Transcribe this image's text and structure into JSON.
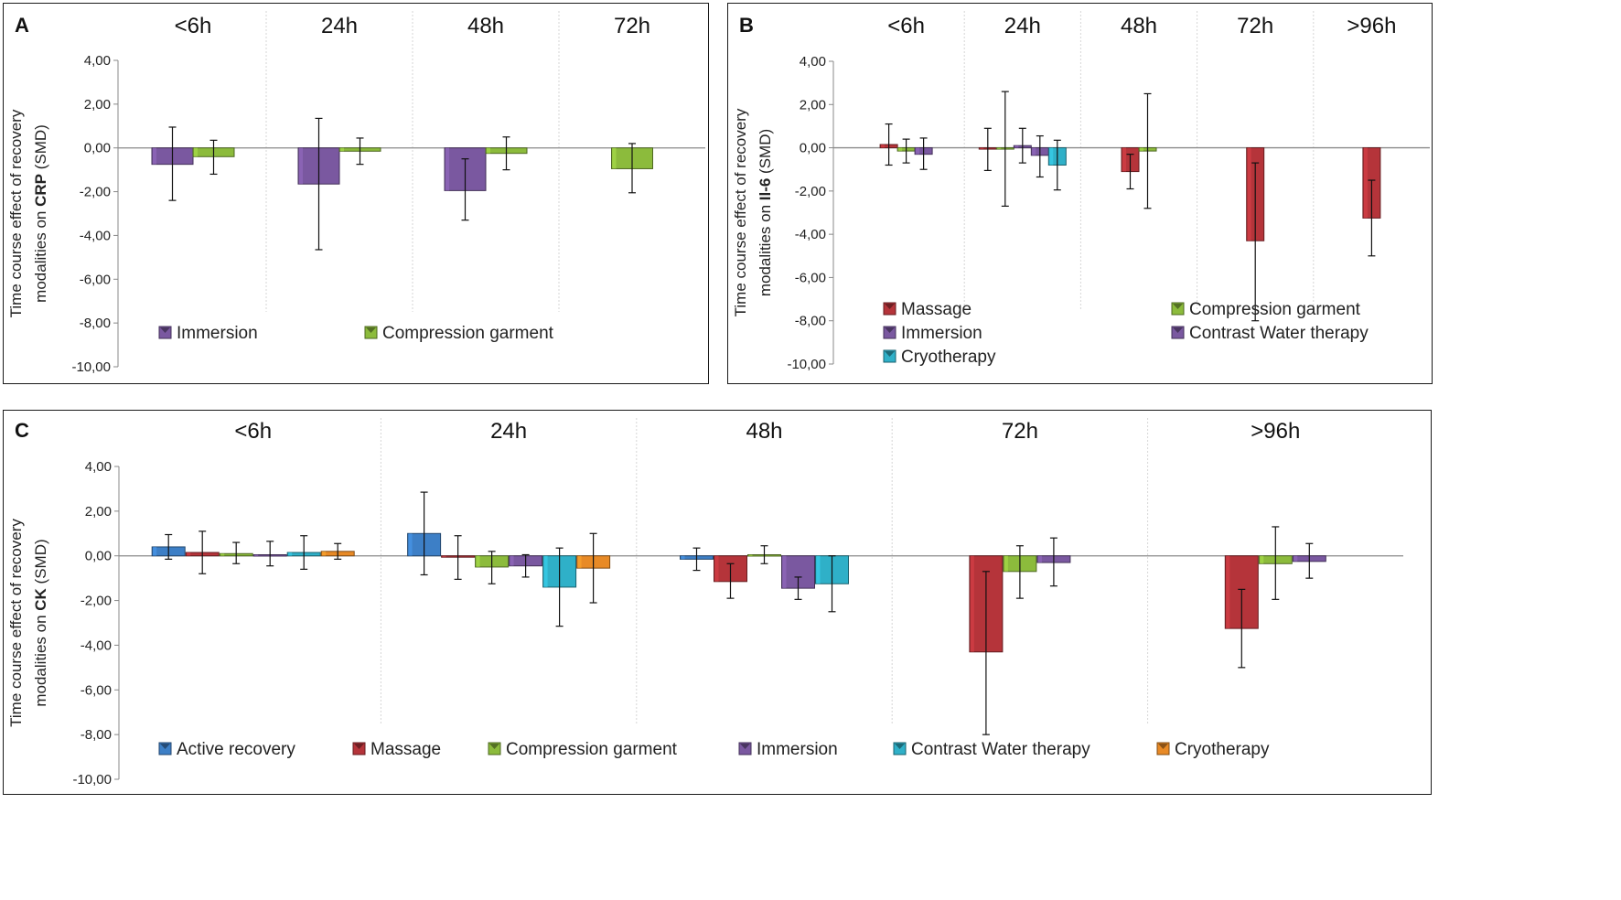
{
  "chart_data": [
    {
      "type": "bar",
      "panel_label": "A",
      "ylabel": [
        "Time course effect of recovery",
        "modalities on",
        "CRP",
        "(SMD)"
      ],
      "ylim": [
        -10,
        4
      ],
      "y_ticks": [
        "4,00",
        "2,00",
        "0,00",
        "-2,00",
        "-4,00",
        "-6,00",
        "-8,00",
        "-10,00"
      ],
      "categories": [
        "<6h",
        "24h",
        "48h",
        "72h"
      ],
      "series": [
        {
          "name": "Immersion",
          "color": "#7a58a0",
          "values": [
            -0.75,
            -1.65,
            -1.95,
            null
          ],
          "ci_low": [
            -2.4,
            -4.65,
            -3.3,
            null
          ],
          "ci_high": [
            0.95,
            1.35,
            -0.5,
            null
          ]
        },
        {
          "name": "Compression garment",
          "color": "#8cbb3c",
          "values": [
            -0.4,
            -0.15,
            -0.25,
            -0.95
          ],
          "ci_low": [
            -1.2,
            -0.75,
            -1.0,
            -2.05
          ],
          "ci_high": [
            0.35,
            0.45,
            0.5,
            0.2
          ]
        }
      ],
      "legend": [
        "Immersion",
        "Compression garment"
      ]
    },
    {
      "type": "bar",
      "panel_label": "B",
      "ylabel": [
        "Time course effect of recovery",
        "modalities on",
        "Il-6",
        "(SMD)"
      ],
      "ylim": [
        -10,
        4
      ],
      "y_ticks": [
        "4,00",
        "2,00",
        "0,00",
        "-2,00",
        "-4,00",
        "-6,00",
        "-8,00",
        "-10,00"
      ],
      "categories": [
        "<6h",
        "24h",
        "48h",
        "72h",
        ">96h"
      ],
      "series": [
        {
          "name": "Massage",
          "color": "#b5343a",
          "values": [
            0.15,
            -0.05,
            -1.1,
            -4.3,
            -3.25
          ],
          "ci_low": [
            -0.8,
            -1.05,
            -1.9,
            -8.0,
            -5.0
          ],
          "ci_high": [
            1.1,
            0.9,
            -0.3,
            -0.7,
            -1.5
          ]
        },
        {
          "name": "Compression garment",
          "color": "#8cbb3c",
          "values": [
            -0.15,
            -0.05,
            -0.15,
            null,
            null
          ],
          "ci_low": [
            -0.7,
            -2.7,
            -2.8,
            null,
            null
          ],
          "ci_high": [
            0.4,
            2.6,
            2.5,
            null,
            null
          ]
        },
        {
          "name": "Immersion",
          "color": "#7a58a0",
          "values": [
            -0.3,
            0.1,
            null,
            null,
            null
          ],
          "ci_low": [
            -1.0,
            -0.7,
            null,
            null,
            null
          ],
          "ci_high": [
            0.45,
            0.9,
            null,
            null,
            null
          ]
        },
        {
          "name": "Contrast Water therapy",
          "color": "#7a58a0",
          "values": [
            null,
            -0.35,
            null,
            null,
            null
          ],
          "ci_low": [
            null,
            -1.35,
            null,
            null,
            null
          ],
          "ci_high": [
            null,
            0.55,
            null,
            null,
            null
          ]
        },
        {
          "name": "Cryotherapy",
          "color": "#2fb0c8",
          "values": [
            null,
            -0.8,
            null,
            null,
            null
          ],
          "ci_low": [
            null,
            -1.95,
            null,
            null,
            null
          ],
          "ci_high": [
            null,
            0.35,
            null,
            null,
            null
          ]
        }
      ],
      "legend": [
        "Massage",
        "Compression garment",
        "Immersion",
        "Contrast Water therapy",
        "Cryotherapy"
      ]
    },
    {
      "type": "bar",
      "panel_label": "C",
      "ylabel": [
        "Time course effect of recovery",
        "modalities on",
        "CK",
        "(SMD)"
      ],
      "ylim": [
        -10,
        4
      ],
      "y_ticks": [
        "4,00",
        "2,00",
        "0,00",
        "-2,00",
        "-4,00",
        "-6,00",
        "-8,00",
        "-10,00"
      ],
      "categories": [
        "<6h",
        "24h",
        "48h",
        "72h",
        ">96h"
      ],
      "series": [
        {
          "name": "Active recovery",
          "color": "#3d7fc6",
          "values": [
            0.4,
            1.0,
            -0.15,
            null,
            null
          ],
          "ci_low": [
            -0.15,
            -0.85,
            -0.65,
            null,
            null
          ],
          "ci_high": [
            0.95,
            2.85,
            0.35,
            null,
            null
          ]
        },
        {
          "name": "Massage",
          "color": "#b5343a",
          "values": [
            0.15,
            -0.05,
            -1.15,
            -4.3,
            -3.25
          ],
          "ci_low": [
            -0.8,
            -1.05,
            -1.9,
            -8.0,
            -5.0
          ],
          "ci_high": [
            1.1,
            0.9,
            -0.35,
            -0.7,
            -1.5
          ]
        },
        {
          "name": "Compression garment",
          "color": "#8cbb3c",
          "values": [
            0.1,
            -0.5,
            0.05,
            -0.7,
            -0.35
          ],
          "ci_low": [
            -0.35,
            -1.25,
            -0.35,
            -1.9,
            -1.95
          ],
          "ci_high": [
            0.6,
            0.2,
            0.45,
            0.45,
            1.3
          ]
        },
        {
          "name": "Immersion",
          "color": "#7a58a0",
          "values": [
            0.05,
            -0.45,
            -1.45,
            -0.3,
            -0.25
          ],
          "ci_low": [
            -0.45,
            -0.95,
            -1.95,
            -1.35,
            -1.0
          ],
          "ci_high": [
            0.65,
            0.05,
            -0.95,
            0.8,
            0.55
          ]
        },
        {
          "name": "Contrast Water therapy",
          "color": "#2fb0c8",
          "values": [
            0.15,
            -1.4,
            -1.25,
            null,
            null
          ],
          "ci_low": [
            -0.6,
            -3.15,
            -2.5,
            null,
            null
          ],
          "ci_high": [
            0.9,
            0.35,
            0.0,
            null,
            null
          ]
        },
        {
          "name": "Cryotherapy",
          "color": "#e88a26",
          "values": [
            0.2,
            -0.55,
            null,
            null,
            null
          ],
          "ci_low": [
            -0.15,
            -2.1,
            null,
            null,
            null
          ],
          "ci_high": [
            0.55,
            1.0,
            null,
            null,
            null
          ]
        }
      ],
      "legend": [
        "Active recovery",
        "Massage",
        "Compression garment",
        "Immersion",
        "Contrast Water therapy",
        "Cryotherapy"
      ]
    }
  ]
}
